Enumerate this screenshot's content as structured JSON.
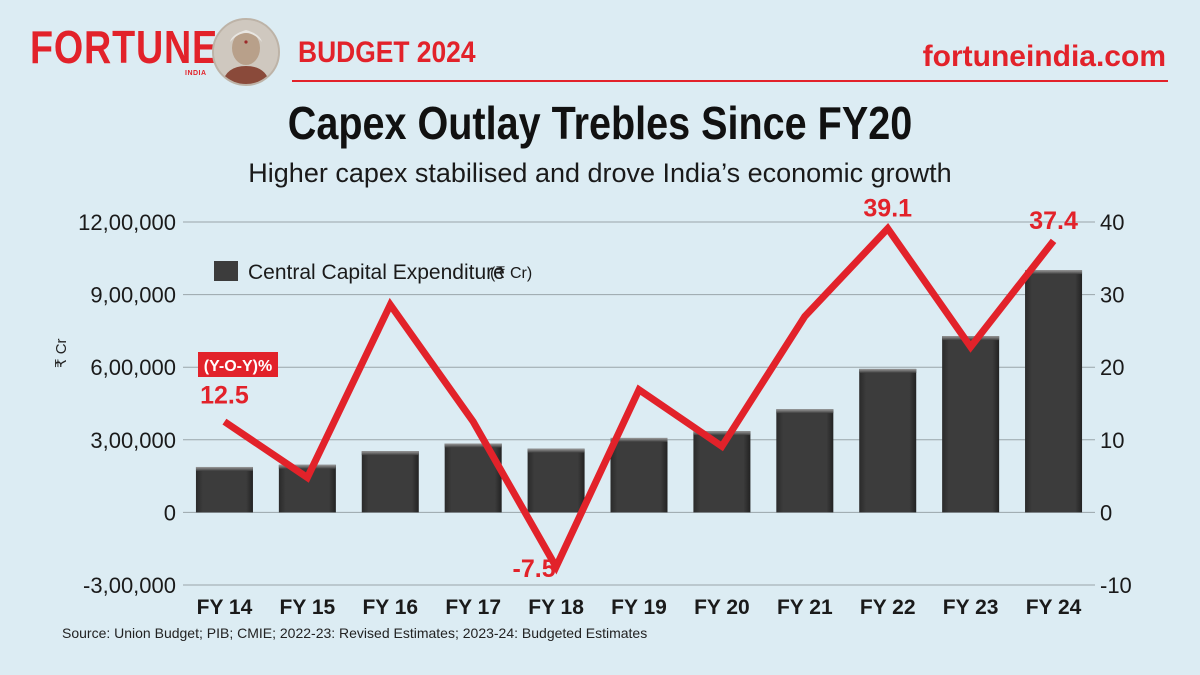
{
  "header": {
    "brand": "FORTUNE",
    "brand_sub": "INDIA",
    "budget_label": "BUDGET 2024",
    "site": "fortuneindia.com"
  },
  "title": "Capex Outlay Trebles Since FY20",
  "subtitle": "Higher capex stabilised and drove India’s economic growth",
  "source": "Source: Union Budget; PIB; CMIE; 2022-23: Revised Estimates; 2023-24: Budgeted Estimates",
  "colors": {
    "accent": "#e2222a",
    "bar": "#3c3c3c",
    "background": "#dcecf3"
  },
  "chart_data": {
    "type": "bar+line",
    "categories": [
      "FY 14",
      "FY 15",
      "FY 16",
      "FY 17",
      "FY 18",
      "FY 19",
      "FY 20",
      "FY 21",
      "FY 22",
      "FY 23",
      "FY 24"
    ],
    "series": [
      {
        "name": "Central Capital Expenditure",
        "unit": "(₹ Cr)",
        "axis": "left",
        "type": "bar",
        "values": [
          187675,
          196681,
          253022,
          284610,
          263140,
          307714,
          335726,
          426317,
          592874,
          728274,
          1000961
        ]
      },
      {
        "name": "(Y-O-Y)%",
        "axis": "right",
        "type": "line",
        "values": [
          12.5,
          4.8,
          28.6,
          12.5,
          -7.5,
          16.9,
          9.1,
          27.0,
          39.1,
          22.8,
          37.4
        ],
        "labeled_points": [
          {
            "index": 0,
            "label": "12.5"
          },
          {
            "index": 4,
            "label": "-7.5"
          },
          {
            "index": 8,
            "label": "39.1"
          },
          {
            "index": 10,
            "label": "37.4"
          }
        ]
      }
    ],
    "left_axis": {
      "label": "₹ Cr",
      "ylim": [
        -300000,
        1200000
      ],
      "ticks": [
        -300000,
        0,
        300000,
        600000,
        900000,
        1200000
      ],
      "tick_labels": [
        "-3,00,000",
        "0",
        "3,00,000",
        "6,00,000",
        "9,00,000",
        "12,00,000"
      ]
    },
    "right_axis": {
      "ylim": [
        -10,
        40
      ],
      "ticks": [
        -10,
        0,
        10,
        20,
        30,
        40
      ],
      "tick_labels": [
        "-10",
        "0",
        "10",
        "20",
        "30",
        "40"
      ]
    },
    "legend": {
      "label": "Central Capital Expenditure",
      "unit": "(₹ Cr)",
      "placement": "top-left"
    },
    "line_badge": "(Y-O-Y)%",
    "grid": true
  }
}
